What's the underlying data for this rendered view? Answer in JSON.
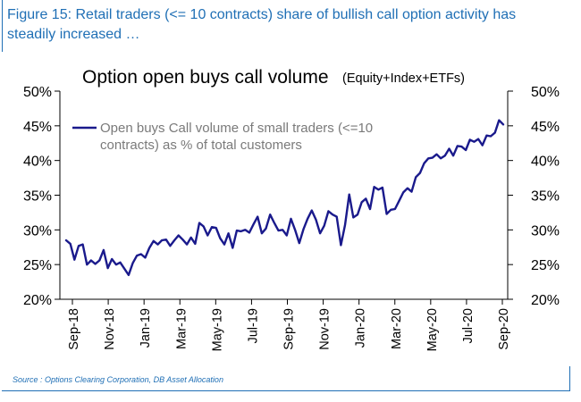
{
  "figure": {
    "title": "Figure 15: Retail traders (<= 10 contracts) share of bullish call option activity has steadily increased …",
    "source": "Source : Options Clearing Corporation, DB Asset Allocation"
  },
  "chart_data": {
    "type": "line",
    "title": "Option open buys call volume",
    "subtitle": "(Equity+Index+ETFs)",
    "xlabel": "",
    "ylabel": "",
    "ylim": [
      20,
      50
    ],
    "y_ticks": [
      "20%",
      "25%",
      "30%",
      "35%",
      "40%",
      "45%",
      "50%"
    ],
    "y_tick_values": [
      20,
      25,
      30,
      35,
      40,
      45,
      50
    ],
    "dual_y_axis": true,
    "grid": false,
    "legend_position": "top-left",
    "x_ticks": [
      "Sep-18",
      "Nov-18",
      "Jan-19",
      "Mar-19",
      "May-19",
      "Jul-19",
      "Sep-19",
      "Nov-19",
      "Jan-20",
      "Mar-20",
      "May-20",
      "Jul-20",
      "Sep-20"
    ],
    "series": [
      {
        "name": "Open buys Call volume of small traders (<=10 contracts) as % of total customers",
        "color": "#1a1a8c",
        "values": [
          28.5,
          28.0,
          25.7,
          27.7,
          27.9,
          25.0,
          25.6,
          25.1,
          25.6,
          27.1,
          24.5,
          25.8,
          25.0,
          25.3,
          24.4,
          23.5,
          25.2,
          26.3,
          26.5,
          26.0,
          27.4,
          28.4,
          27.9,
          28.5,
          28.6,
          27.7,
          28.5,
          29.2,
          28.6,
          27.9,
          28.9,
          28.0,
          31.0,
          30.5,
          29.2,
          30.4,
          30.3,
          28.8,
          27.9,
          29.5,
          27.4,
          29.9,
          29.8,
          30.0,
          29.6,
          30.8,
          31.9,
          29.5,
          30.2,
          32.2,
          31.0,
          29.9,
          30.0,
          29.2,
          31.6,
          30.0,
          28.1,
          30.1,
          31.6,
          32.8,
          31.5,
          29.5,
          30.6,
          32.7,
          32.2,
          31.9,
          27.8,
          30.7,
          35.1,
          31.8,
          32.2,
          34.0,
          34.5,
          33.0,
          36.2,
          35.8,
          36.1,
          32.3,
          32.9,
          33.0,
          34.2,
          35.4,
          36.0,
          35.5,
          37.6,
          38.2,
          39.6,
          40.3,
          40.4,
          40.9,
          40.3,
          40.7,
          41.7,
          40.7,
          42.1,
          42.0,
          41.5,
          43.0,
          42.7,
          43.1,
          42.2,
          43.6,
          43.5,
          44.0,
          45.8,
          45.2
        ]
      }
    ]
  }
}
